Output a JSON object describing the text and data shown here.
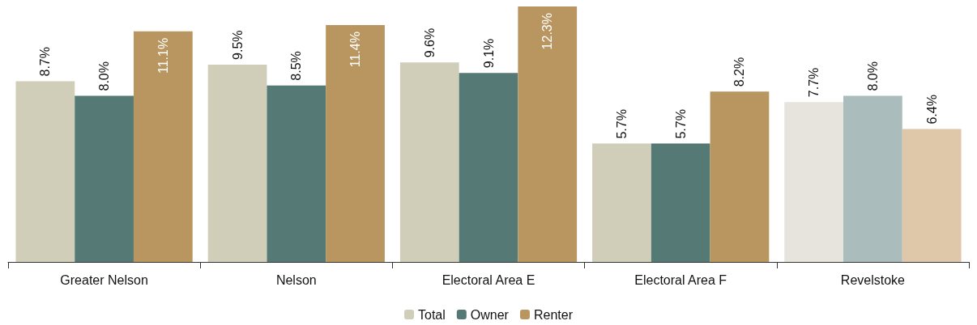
{
  "chart_data": {
    "type": "bar",
    "categories": [
      "Greater Nelson",
      "Nelson",
      "Electoral Area E",
      "Electoral Area F",
      "Revelstoke"
    ],
    "series": [
      {
        "name": "Total",
        "color": "#d0cdb8",
        "colors": [
          "#d0cdb8",
          "#d0cdb8",
          "#d0cdb8",
          "#d0cdb8",
          "#e6e4dc"
        ],
        "values": [
          8.7,
          9.5,
          9.6,
          5.7,
          7.7
        ],
        "value_labels": [
          "8.7%",
          "9.5%",
          "9.6%",
          "5.7%",
          "7.7%"
        ]
      },
      {
        "name": "Owner",
        "color": "#557a76",
        "colors": [
          "#557a76",
          "#557a76",
          "#557a76",
          "#557a76",
          "#abbcbc"
        ],
        "values": [
          8.0,
          8.5,
          9.1,
          5.7,
          8.0
        ],
        "value_labels": [
          "8.0%",
          "8.5%",
          "9.1%",
          "5.7%",
          "8.0%"
        ]
      },
      {
        "name": "Renter",
        "color": "#b99660",
        "colors": [
          "#b99660",
          "#b99660",
          "#b99660",
          "#b99660",
          "#dec8a9"
        ],
        "values": [
          11.1,
          11.4,
          12.3,
          8.2,
          6.4
        ],
        "value_labels": [
          "11.1%",
          "11.4%",
          "12.3%",
          "8.2%",
          "6.4%"
        ]
      }
    ],
    "legend": "bottom"
  }
}
